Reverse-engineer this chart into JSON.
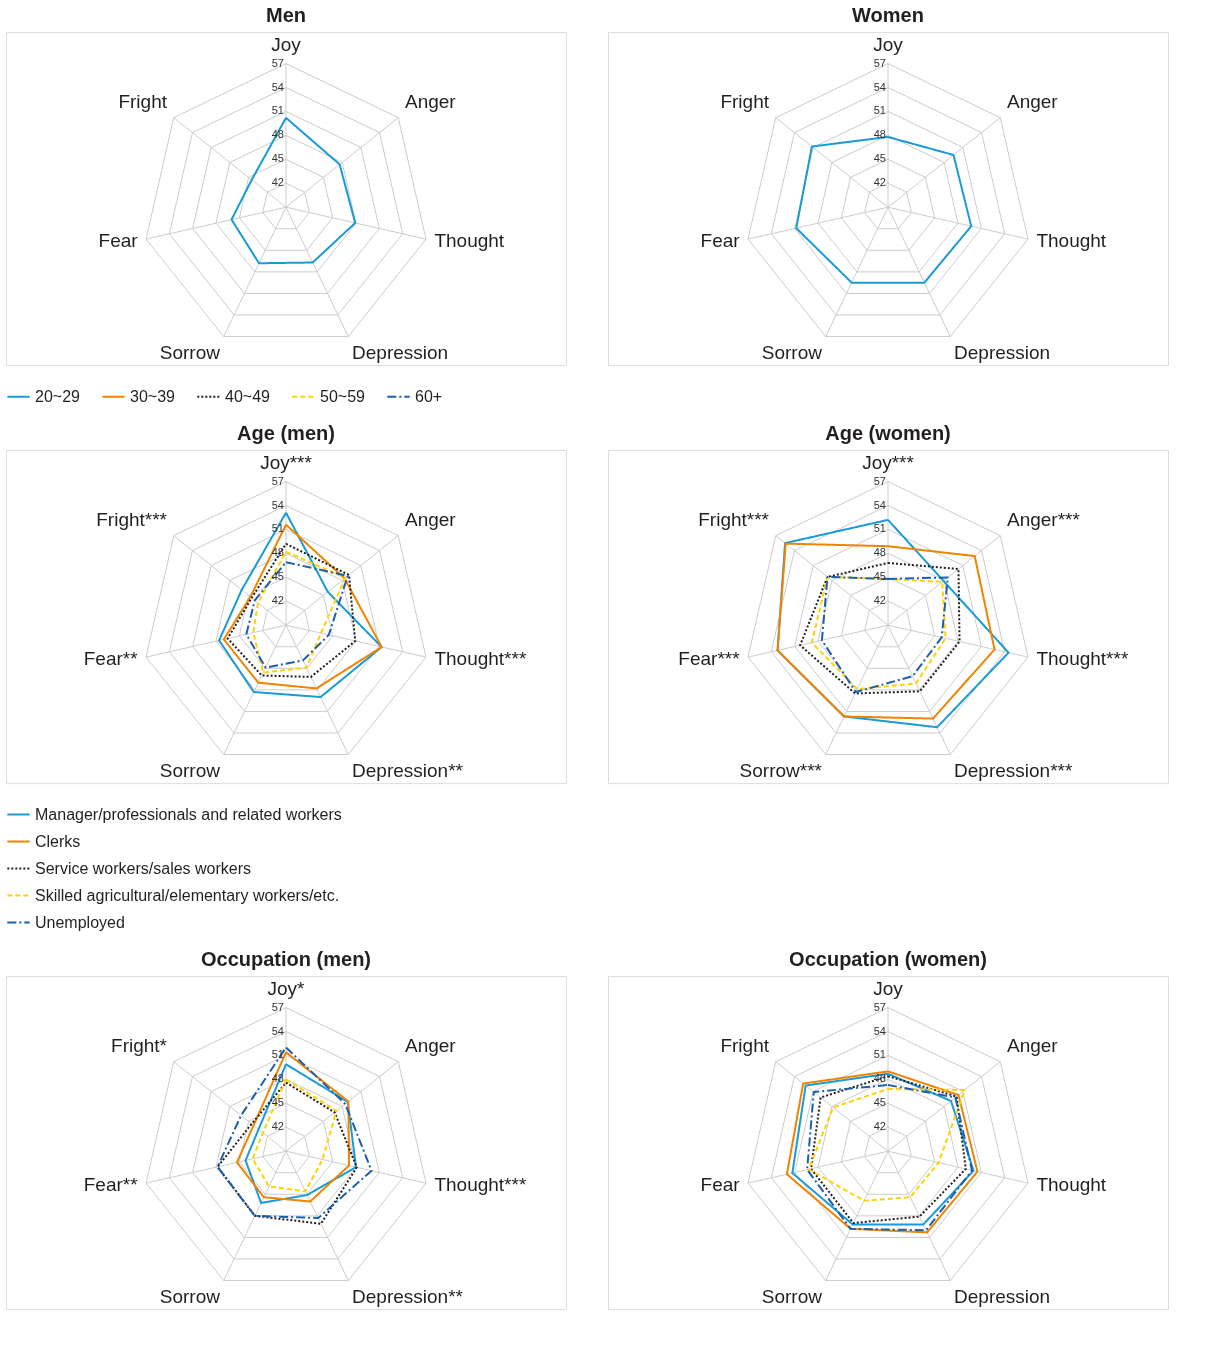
{
  "chart_data": [
    {
      "type": "radar",
      "title": "Men",
      "categories": [
        "Joy",
        "Anger",
        "Thought",
        "Depression",
        "Sorrow",
        "Fear",
        "Fright"
      ],
      "ylim": [
        39,
        57
      ],
      "yticks": [
        42,
        45,
        48,
        51,
        54,
        57
      ],
      "grid": true,
      "marker": "none",
      "series": [
        {
          "color": "#1a9ad6",
          "line_style": "solid",
          "values": [
            50.2,
            47.6,
            47.9,
            46.7,
            46.8,
            46.0,
            44.5
          ]
        }
      ]
    },
    {
      "type": "radar",
      "title": "Women",
      "categories": [
        "Joy",
        "Anger",
        "Thought",
        "Depression",
        "Sorrow",
        "Fear",
        "Fright"
      ],
      "ylim": [
        39,
        57
      ],
      "yticks": [
        42,
        45,
        48,
        51,
        54,
        57
      ],
      "grid": true,
      "marker": "none",
      "series": [
        {
          "color": "#1a9ad6",
          "line_style": "solid",
          "values": [
            47.8,
            49.5,
            49.7,
            49.5,
            49.5,
            50.8,
            51.2
          ]
        }
      ]
    },
    {
      "type": "radar",
      "title": "Age (men)",
      "categories": [
        "Joy***",
        "Anger",
        "Thought***",
        "Depression**",
        "Sorrow",
        "Fear**",
        "Fright***"
      ],
      "ylim": [
        39,
        57
      ],
      "yticks": [
        42,
        45,
        48,
        51,
        54,
        57
      ],
      "grid": true,
      "marker": "none",
      "legend": "top",
      "series": [
        {
          "name": "20~29",
          "color": "#1a9ad6",
          "line_style": "solid",
          "values": [
            53.1,
            45.7,
            51.3,
            49.0,
            48.3,
            47.6,
            46.1
          ]
        },
        {
          "name": "30~39",
          "color": "#f08300",
          "line_style": "solid",
          "values": [
            51.6,
            48.4,
            51.3,
            47.8,
            47.0,
            47.0,
            44.7
          ]
        },
        {
          "name": "40~49",
          "color": "#231f20",
          "line_style": "dotted",
          "values": [
            49.2,
            49.1,
            47.9,
            46.2,
            46.0,
            46.5,
            44.5
          ]
        },
        {
          "name": "50~59",
          "color": "#ffd200",
          "line_style": "dashed",
          "values": [
            48.2,
            48.5,
            43.5,
            44.9,
            45.6,
            43.2,
            43.5
          ]
        },
        {
          "name": "60+",
          "color": "#1c5fad",
          "line_style": "dashdot",
          "values": [
            46.9,
            48.9,
            44.5,
            43.9,
            44.9,
            44.1,
            44.0
          ]
        }
      ]
    },
    {
      "type": "radar",
      "title": "Age (women)",
      "categories": [
        "Joy***",
        "Anger***",
        "Thought***",
        "Depression***",
        "Sorrow***",
        "Fear***",
        "Fright***"
      ],
      "ylim": [
        39,
        57
      ],
      "yticks": [
        42,
        45,
        48,
        51,
        54,
        57
      ],
      "grid": true,
      "marker": "none",
      "legend": "top",
      "series": [
        {
          "name": "20~29",
          "color": "#1a9ad6",
          "line_style": "solid",
          "values": [
            52.2,
            47.9,
            54.5,
            53.2,
            51.7,
            53.2,
            55.5
          ]
        },
        {
          "name": "30~39",
          "color": "#f08300",
          "line_style": "solid",
          "values": [
            48.9,
            52.9,
            52.7,
            52.0,
            51.7,
            53.2,
            55.4
          ]
        },
        {
          "name": "40~49",
          "color": "#231f20",
          "line_style": "dotted",
          "values": [
            46.8,
            50.3,
            48.2,
            48.2,
            48.5,
            50.3,
            48.7
          ]
        },
        {
          "name": "50~59",
          "color": "#ffd200",
          "line_style": "dashed",
          "values": [
            44.8,
            47.7,
            46.4,
            47.1,
            47.9,
            48.8,
            48.7
          ]
        },
        {
          "name": "60+",
          "color": "#1c5fad",
          "line_style": "dashdot",
          "values": [
            44.8,
            48.6,
            45.9,
            46.1,
            48.3,
            47.5,
            48.7
          ]
        }
      ]
    },
    {
      "type": "radar",
      "title": "Occupation (men)",
      "categories": [
        "Joy*",
        "Anger",
        "Thought***",
        "Depression**",
        "Sorrow",
        "Fear**",
        "Fright*"
      ],
      "ylim": [
        39,
        57
      ],
      "yticks": [
        42,
        45,
        48,
        51,
        54,
        57
      ],
      "grid": true,
      "marker": "none",
      "legend": "top left",
      "series": [
        {
          "name": "Manager/professionals and related workers",
          "color": "#1a9ad6",
          "line_style": "solid",
          "values": [
            49.9,
            48.9,
            48.0,
            45.1,
            46.2,
            44.2,
            43.4
          ]
        },
        {
          "name": "Clerks",
          "color": "#f08300",
          "line_style": "solid",
          "values": [
            51.4,
            49.0,
            47.1,
            46.0,
            45.4,
            45.3,
            44.2
          ]
        },
        {
          "name": "Service workers/sales workers",
          "color": "#231f20",
          "line_style": "dotted",
          "values": [
            47.6,
            46.8,
            48.1,
            49.1,
            48.0,
            47.8,
            44.5
          ]
        },
        {
          "name": "Skilled agricultural/elementary workers/etc.",
          "color": "#ffd200",
          "line_style": "dashed",
          "values": [
            48.0,
            47.1,
            43.7,
            44.6,
            43.9,
            43.3,
            42.7
          ]
        },
        {
          "name": "Unemployed",
          "color": "#1c5fad",
          "line_style": "dashdot",
          "values": [
            52.0,
            48.5,
            50.0,
            48.3,
            48.0,
            47.8,
            46.2
          ]
        }
      ]
    },
    {
      "type": "radar",
      "title": "Occupation (women)",
      "categories": [
        "Joy",
        "Anger",
        "Thought",
        "Depression",
        "Sorrow",
        "Fear",
        "Fright"
      ],
      "ylim": [
        39,
        57
      ],
      "yticks": [
        42,
        45,
        48,
        51,
        54,
        57
      ],
      "grid": true,
      "marker": "none",
      "legend": "top left",
      "series": [
        {
          "name": "Manager/professionals and related workers",
          "color": "#1a9ad6",
          "line_style": "solid",
          "values": [
            48.7,
            49.1,
            50.0,
            49.2,
            49.2,
            51.3,
            52.2
          ]
        },
        {
          "name": "Clerks",
          "color": "#f08300",
          "line_style": "solid",
          "values": [
            49.0,
            50.3,
            50.5,
            50.3,
            49.8,
            52.0,
            52.6
          ]
        },
        {
          "name": "Service workers/sales workers",
          "color": "#231f20",
          "line_style": "dotted",
          "values": [
            48.4,
            50.0,
            49.0,
            48.1,
            49.0,
            48.9,
            49.8
          ]
        },
        {
          "name": "Skilled agricultural/elementary workers/etc.",
          "color": "#ffd200",
          "line_style": "dashed",
          "values": [
            46.8,
            51.3,
            45.5,
            45.4,
            45.9,
            49.2,
            47.8
          ]
        },
        {
          "name": "Unemployed",
          "color": "#1c5fad",
          "line_style": "dashdot",
          "values": [
            47.3,
            49.8,
            49.8,
            50.0,
            49.8,
            49.4,
            50.9
          ]
        }
      ]
    }
  ]
}
